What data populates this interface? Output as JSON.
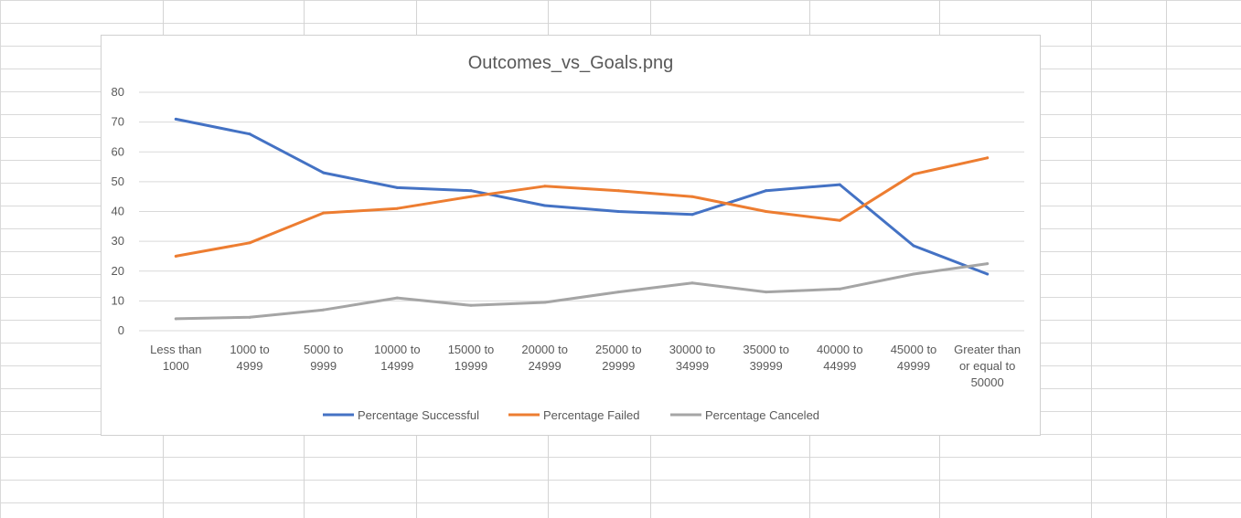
{
  "chart_data": {
    "type": "line",
    "title": "Outcomes_vs_Goals.png",
    "xlabel": "",
    "ylabel": "",
    "ylim": [
      0,
      80
    ],
    "yticks": [
      "0",
      "10",
      "20",
      "30",
      "40",
      "50",
      "60",
      "70",
      "80"
    ],
    "grid": true,
    "legend_position": "bottom",
    "categories": [
      [
        "Less than",
        "1000"
      ],
      [
        "1000 to",
        "4999"
      ],
      [
        "5000 to",
        "9999"
      ],
      [
        "10000 to",
        "14999"
      ],
      [
        "15000 to",
        "19999"
      ],
      [
        "20000 to",
        "24999"
      ],
      [
        "25000 to",
        "29999"
      ],
      [
        "30000 to",
        "34999"
      ],
      [
        "35000 to",
        "39999"
      ],
      [
        "40000 to",
        "44999"
      ],
      [
        "45000 to",
        "49999"
      ],
      [
        "Greater than",
        "or equal to",
        "50000"
      ]
    ],
    "series": [
      {
        "name": "Percentage Successful",
        "color": "#4472c4",
        "values": [
          71,
          66,
          53,
          48,
          47,
          42,
          40,
          39,
          47,
          49,
          28.5,
          19
        ]
      },
      {
        "name": "Percentage Failed",
        "color": "#ed7d31",
        "values": [
          25,
          29.5,
          39.5,
          41,
          45,
          48.5,
          47,
          45,
          40,
          37,
          52.5,
          58
        ]
      },
      {
        "name": "Percentage Canceled",
        "color": "#a5a5a5",
        "values": [
          4,
          4.5,
          7,
          11,
          8.5,
          9.5,
          13,
          16,
          13,
          14,
          19,
          22.5
        ]
      }
    ]
  },
  "colors": {
    "gridline": "#d9d9d9",
    "text": "#595959",
    "title": "#595959"
  }
}
